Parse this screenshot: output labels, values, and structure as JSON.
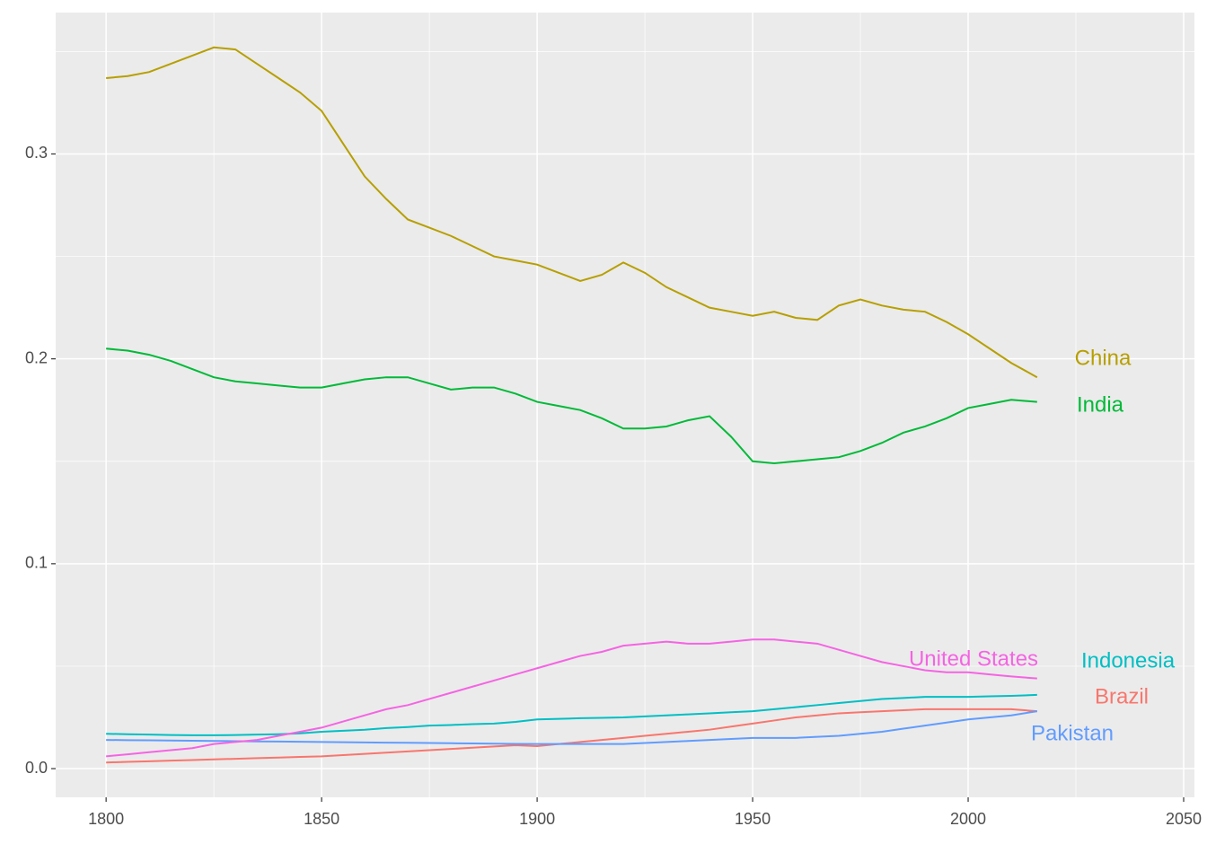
{
  "chart_data": {
    "type": "line",
    "x": [
      1800,
      1805,
      1810,
      1815,
      1820,
      1825,
      1830,
      1835,
      1840,
      1845,
      1850,
      1855,
      1860,
      1865,
      1870,
      1875,
      1880,
      1885,
      1890,
      1895,
      1900,
      1905,
      1910,
      1915,
      1920,
      1925,
      1930,
      1935,
      1940,
      1945,
      1950,
      1955,
      1960,
      1965,
      1970,
      1975,
      1980,
      1985,
      1990,
      1995,
      2000,
      2005,
      2010,
      2016
    ],
    "series": [
      {
        "name": "Brazil",
        "color": "#F8766D",
        "values": [
          0.003,
          0.0033,
          0.0036,
          0.0039,
          0.0042,
          0.0045,
          0.0048,
          0.0051,
          0.0054,
          0.0057,
          0.006,
          0.0066,
          0.0072,
          0.0078,
          0.0084,
          0.009,
          0.0096,
          0.0102,
          0.0108,
          0.0114,
          0.011,
          0.012,
          0.013,
          0.014,
          0.015,
          0.016,
          0.017,
          0.018,
          0.019,
          0.0205,
          0.022,
          0.0235,
          0.025,
          0.026,
          0.027,
          0.0275,
          0.028,
          0.0285,
          0.029,
          0.029,
          0.029,
          0.029,
          0.029,
          0.028
        ]
      },
      {
        "name": "China",
        "color": "#B79F00",
        "values": [
          0.337,
          0.338,
          0.34,
          0.344,
          0.348,
          0.352,
          0.351,
          0.344,
          0.337,
          0.33,
          0.321,
          0.305,
          0.289,
          0.278,
          0.268,
          0.264,
          0.26,
          0.255,
          0.25,
          0.248,
          0.246,
          0.242,
          0.238,
          0.241,
          0.247,
          0.242,
          0.235,
          0.23,
          0.225,
          0.223,
          0.221,
          0.223,
          0.22,
          0.219,
          0.226,
          0.229,
          0.226,
          0.224,
          0.223,
          0.218,
          0.212,
          0.205,
          0.198,
          0.191
        ]
      },
      {
        "name": "India",
        "color": "#00BA38",
        "values": [
          0.205,
          0.204,
          0.202,
          0.199,
          0.195,
          0.191,
          0.189,
          0.188,
          0.187,
          0.186,
          0.186,
          0.188,
          0.19,
          0.191,
          0.191,
          0.188,
          0.185,
          0.186,
          0.186,
          0.183,
          0.179,
          0.177,
          0.175,
          0.171,
          0.166,
          0.166,
          0.167,
          0.17,
          0.172,
          0.162,
          0.15,
          0.149,
          0.15,
          0.151,
          0.152,
          0.155,
          0.159,
          0.164,
          0.167,
          0.171,
          0.176,
          0.178,
          0.18,
          0.179
        ]
      },
      {
        "name": "Indonesia",
        "color": "#00BFC4",
        "values": [
          0.017,
          0.0168,
          0.0166,
          0.0164,
          0.0163,
          0.0163,
          0.0164,
          0.0166,
          0.0168,
          0.0172,
          0.018,
          0.0185,
          0.019,
          0.0198,
          0.0203,
          0.021,
          0.0213,
          0.0217,
          0.022,
          0.0228,
          0.024,
          0.0243,
          0.0246,
          0.0248,
          0.025,
          0.0255,
          0.026,
          0.0265,
          0.027,
          0.0275,
          0.028,
          0.029,
          0.03,
          0.031,
          0.032,
          0.033,
          0.034,
          0.0345,
          0.035,
          0.035,
          0.035,
          0.0353,
          0.0355,
          0.036
        ]
      },
      {
        "name": "Pakistan",
        "color": "#619CFF",
        "values": [
          0.014,
          0.0139,
          0.0138,
          0.0137,
          0.0136,
          0.0135,
          0.0134,
          0.0133,
          0.0132,
          0.0131,
          0.013,
          0.0129,
          0.0128,
          0.0127,
          0.0126,
          0.0125,
          0.0124,
          0.0123,
          0.0122,
          0.0121,
          0.012,
          0.012,
          0.012,
          0.012,
          0.012,
          0.0125,
          0.013,
          0.0135,
          0.014,
          0.0145,
          0.015,
          0.015,
          0.015,
          0.0155,
          0.016,
          0.017,
          0.018,
          0.0195,
          0.021,
          0.0225,
          0.024,
          0.025,
          0.026,
          0.028
        ]
      },
      {
        "name": "United States",
        "color": "#F564E3",
        "values": [
          0.006,
          0.007,
          0.008,
          0.009,
          0.01,
          0.012,
          0.013,
          0.014,
          0.016,
          0.018,
          0.02,
          0.023,
          0.026,
          0.029,
          0.031,
          0.034,
          0.037,
          0.04,
          0.043,
          0.046,
          0.049,
          0.052,
          0.055,
          0.057,
          0.06,
          0.061,
          0.062,
          0.061,
          0.061,
          0.062,
          0.063,
          0.063,
          0.062,
          0.061,
          0.058,
          0.055,
          0.052,
          0.05,
          0.048,
          0.047,
          0.047,
          0.046,
          0.045,
          0.044
        ]
      }
    ],
    "xlim": [
      1788.3,
      2052.5
    ],
    "ylim": [
      -0.014,
      0.369
    ],
    "xticks": [
      1800,
      1850,
      1900,
      1950,
      2000,
      2050
    ],
    "yticks": [
      {
        "value": 0,
        "label": "0.0"
      },
      0.1,
      0.2,
      0.3
    ],
    "grid": true
  }
}
